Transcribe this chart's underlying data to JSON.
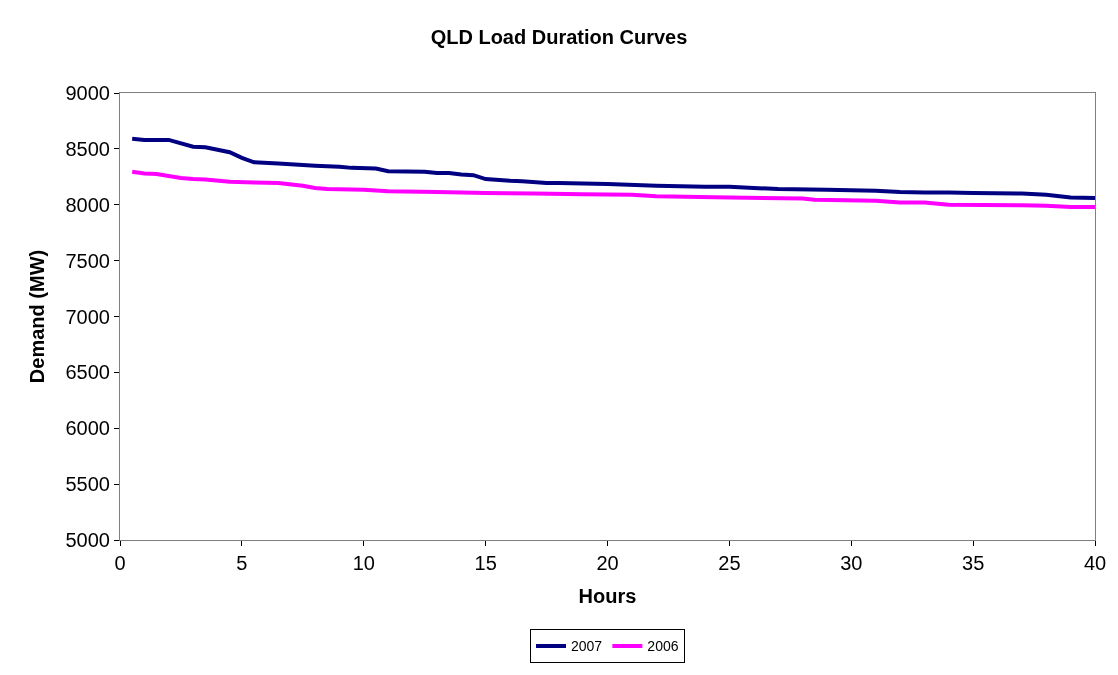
{
  "chart_data": {
    "type": "line",
    "title": "QLD Load Duration Curves",
    "xlabel": "Hours",
    "ylabel": "Demand (MW)",
    "xlim": [
      0,
      40
    ],
    "xticks": [
      0,
      5,
      10,
      15,
      20,
      25,
      30,
      35,
      40
    ],
    "ylim": [
      5000,
      9000
    ],
    "yticks": [
      5000,
      5500,
      6000,
      6500,
      7000,
      7500,
      8000,
      8500,
      9000
    ],
    "grid": false,
    "legend": "bottom",
    "marker": "none",
    "line_style": "solid",
    "series": [
      {
        "name": "2007",
        "color": "#000080",
        "x": [
          0.5,
          1,
          2,
          3,
          3.5,
          4.5,
          5,
          5.5,
          6.5,
          8,
          9,
          9.5,
          10.5,
          11,
          12.5,
          13,
          13.5,
          14,
          14.5,
          15,
          16,
          16.5,
          17.5,
          18,
          20,
          22,
          24,
          25,
          26,
          27,
          29,
          30,
          31,
          32,
          33,
          34,
          35,
          37,
          38,
          39,
          40
        ],
        "values": [
          8590,
          8580,
          8580,
          8520,
          8515,
          8470,
          8420,
          8380,
          8370,
          8350,
          8340,
          8330,
          8325,
          8300,
          8295,
          8285,
          8285,
          8270,
          8265,
          8230,
          8215,
          8210,
          8195,
          8195,
          8185,
          8170,
          8160,
          8160,
          8150,
          8140,
          8135,
          8130,
          8125,
          8115,
          8110,
          8110,
          8105,
          8100,
          8090,
          8065,
          8060
        ]
      },
      {
        "name": "2006",
        "color": "#ff00ff",
        "x": [
          0.5,
          1,
          1.5,
          2.5,
          3,
          3.5,
          4.5,
          5.5,
          6.5,
          7.5,
          8,
          8.5,
          10,
          11,
          13,
          15,
          17,
          19,
          21,
          22,
          25,
          28,
          28.5,
          31,
          32,
          33,
          34,
          37,
          38,
          39,
          40
        ],
        "values": [
          8295,
          8280,
          8275,
          8240,
          8230,
          8225,
          8205,
          8200,
          8195,
          8170,
          8150,
          8140,
          8135,
          8120,
          8115,
          8105,
          8100,
          8095,
          8090,
          8075,
          8065,
          8055,
          8045,
          8035,
          8020,
          8020,
          8000,
          7995,
          7990,
          7980,
          7980
        ]
      }
    ]
  }
}
